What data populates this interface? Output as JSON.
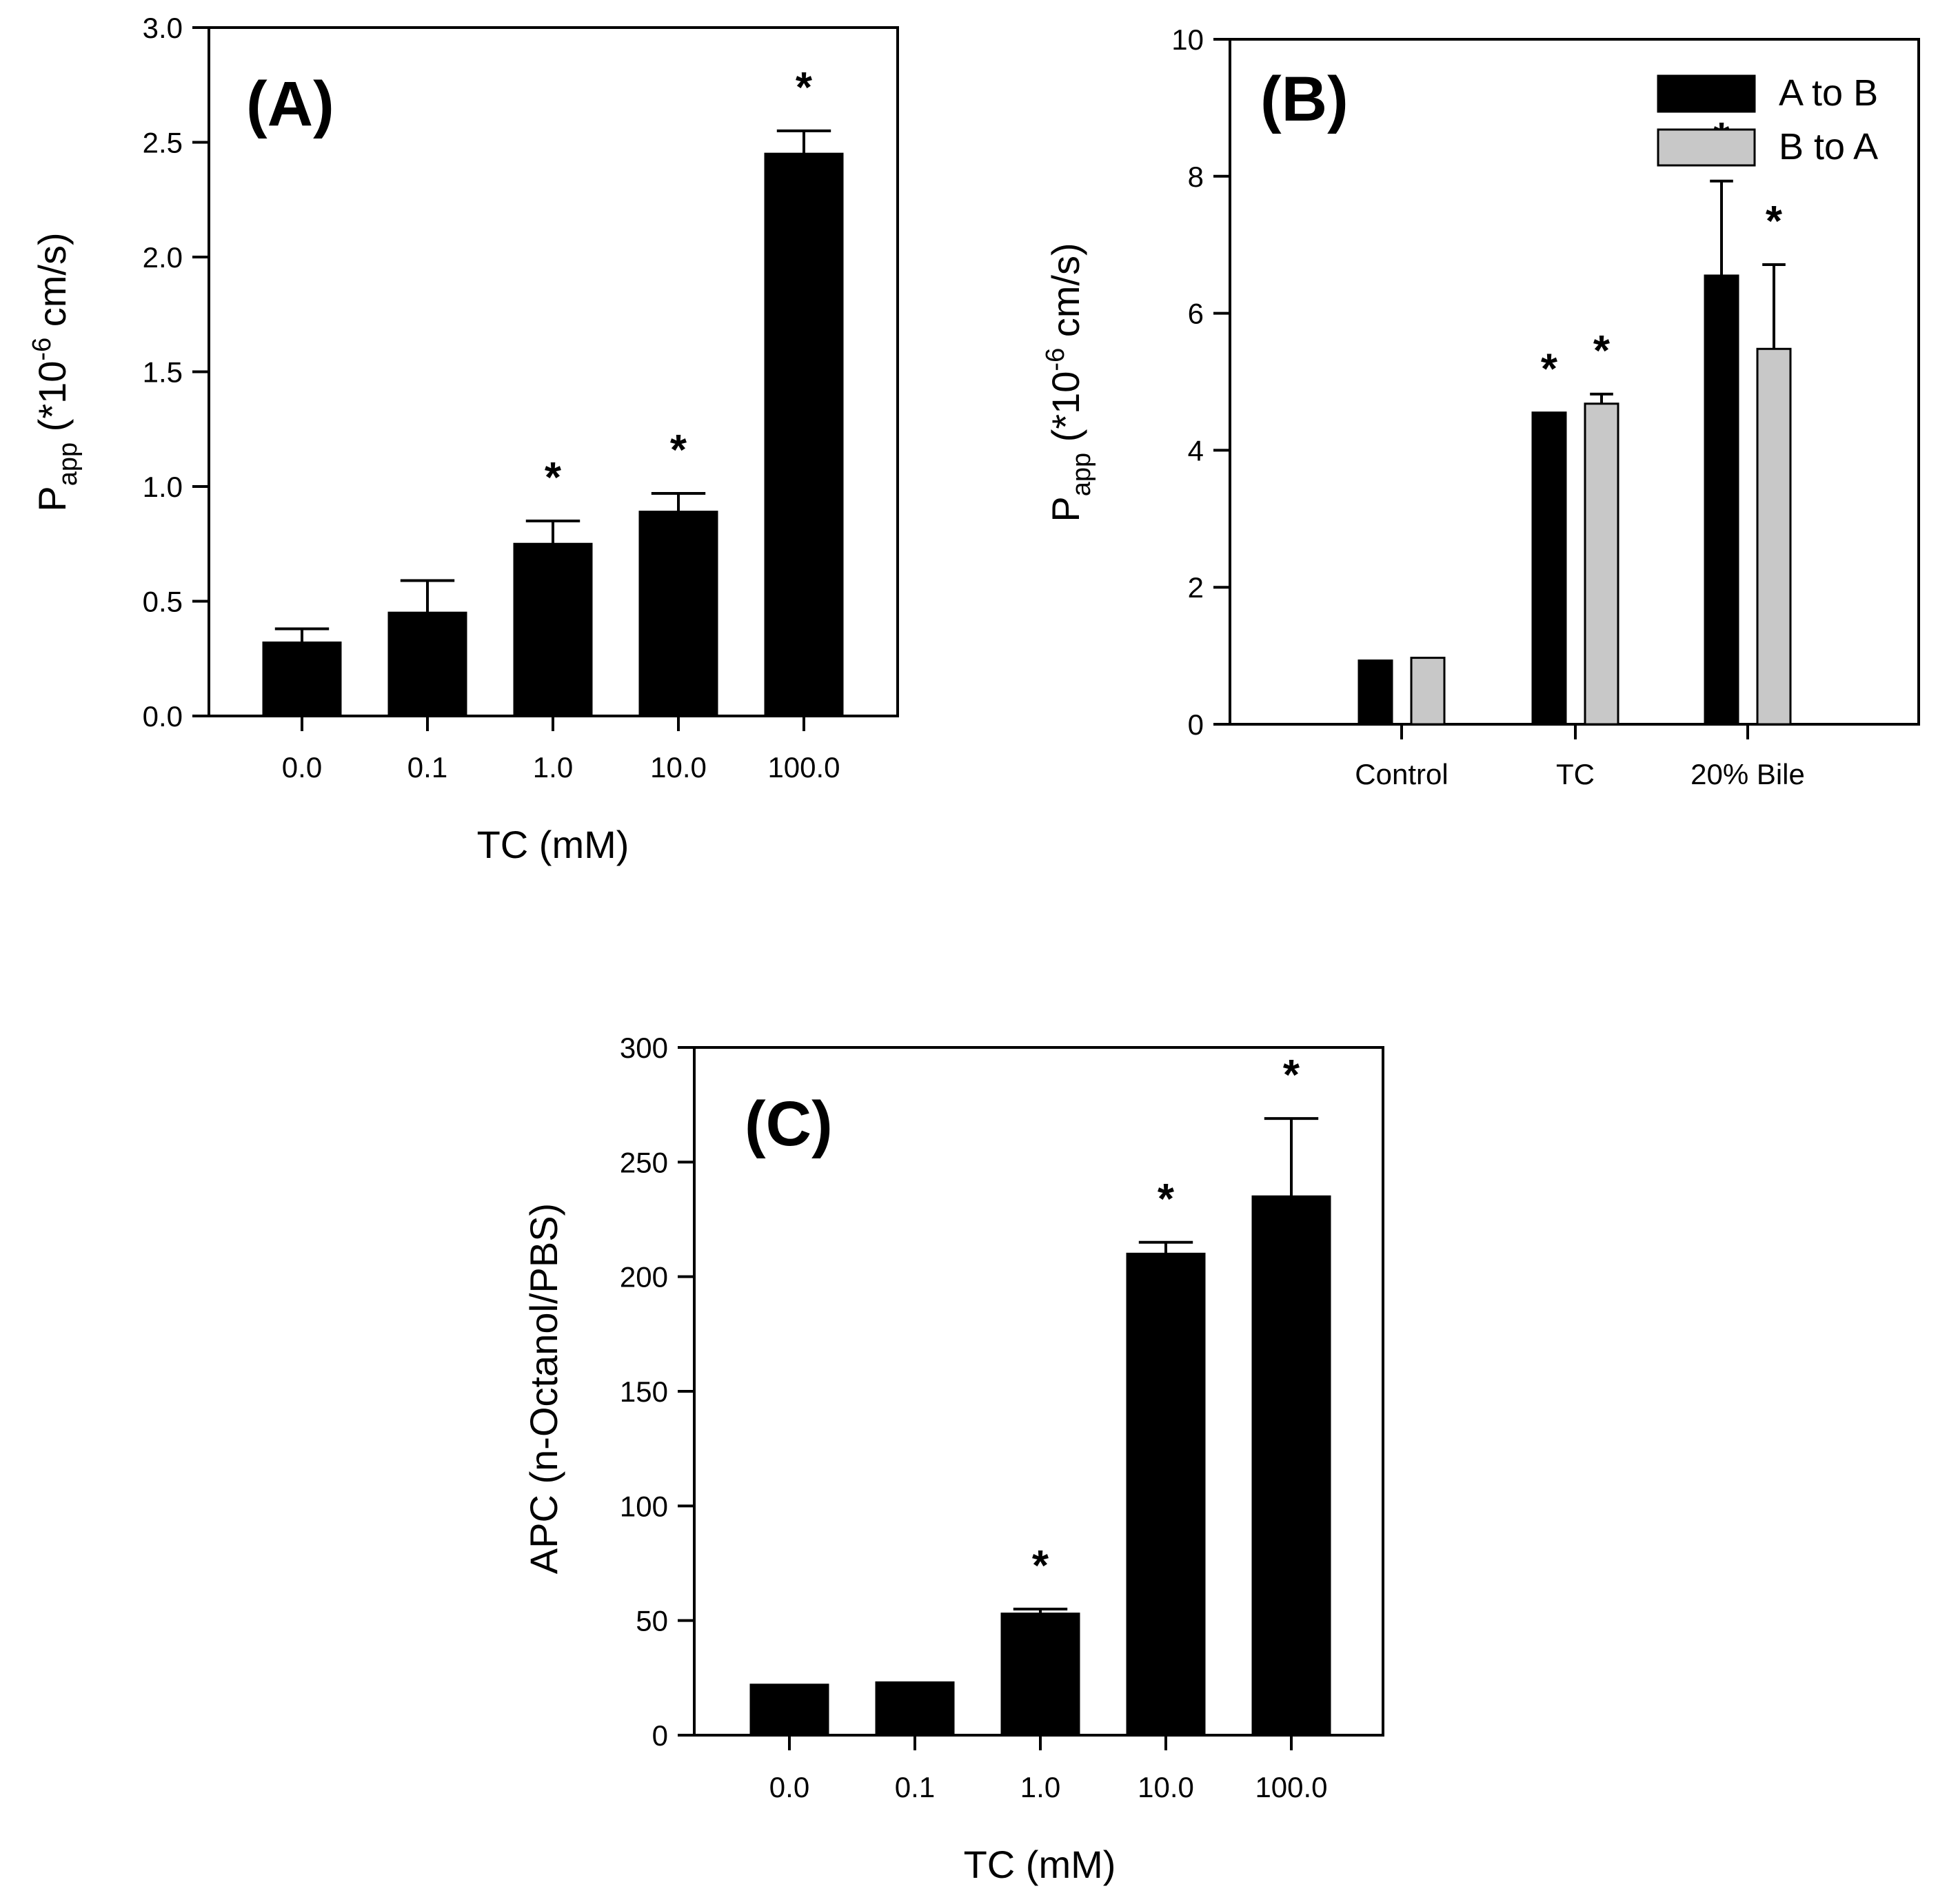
{
  "colors": {
    "series_a_to_b": "#000000",
    "series_b_to_a": "#c8c8c8",
    "background": "#ffffff"
  },
  "chart_data": [
    {
      "panel": "A",
      "type": "bar",
      "panel_label": "(A)",
      "title": "",
      "xlabel": "TC (mM)",
      "ylabel": "P",
      "ylabel_sub": "app",
      "ylabel_rest": " (*10",
      "ylabel_sup": "-6",
      "ylabel_end": " cm/s)",
      "categories": [
        "0.0",
        "0.1",
        "1.0",
        "10.0",
        "100.0"
      ],
      "values": [
        0.32,
        0.45,
        0.75,
        0.89,
        2.45
      ],
      "errors": [
        0.06,
        0.14,
        0.1,
        0.08,
        0.1
      ],
      "significant": [
        false,
        false,
        true,
        true,
        true
      ],
      "marker": "*",
      "ylim": [
        0,
        3.0
      ],
      "yticks": [
        "0.0",
        "0.5",
        "1.0",
        "1.5",
        "2.0",
        "2.5",
        "3.0"
      ]
    },
    {
      "panel": "B",
      "type": "bar",
      "panel_label": "(B)",
      "title": "",
      "xlabel": "",
      "ylabel": "P",
      "ylabel_sub": "app",
      "ylabel_rest": " (*10",
      "ylabel_sup": "-6",
      "ylabel_end": " cm/s)",
      "categories": [
        "Control",
        "TC",
        "20% Bile"
      ],
      "series": [
        {
          "name": "A to B",
          "values": [
            0.93,
            4.55,
            6.55
          ],
          "errors": [
            0.0,
            0.0,
            1.38
          ],
          "significant": [
            false,
            true,
            true
          ]
        },
        {
          "name": "B to A",
          "values": [
            0.97,
            4.68,
            5.48
          ],
          "errors": [
            0.0,
            0.14,
            1.23
          ],
          "significant": [
            false,
            true,
            true
          ]
        }
      ],
      "marker": "*",
      "legend": [
        "A to B",
        "B to A"
      ],
      "legend_position": "top-right",
      "ylim": [
        0,
        10
      ],
      "yticks": [
        "0",
        "2",
        "4",
        "6",
        "8",
        "10"
      ]
    },
    {
      "panel": "C",
      "type": "bar",
      "panel_label": "(C)",
      "title": "",
      "xlabel": "TC (mM)",
      "ylabel": "APC (n-Octanol/PBS)",
      "categories": [
        "0.0",
        "0.1",
        "1.0",
        "10.0",
        "100.0"
      ],
      "values": [
        22,
        23,
        53,
        210,
        235
      ],
      "errors": [
        0,
        0,
        2,
        5,
        34
      ],
      "significant": [
        false,
        false,
        true,
        true,
        true
      ],
      "marker": "*",
      "ylim": [
        0,
        300
      ],
      "yticks": [
        "0",
        "50",
        "100",
        "150",
        "200",
        "250",
        "300"
      ]
    }
  ]
}
